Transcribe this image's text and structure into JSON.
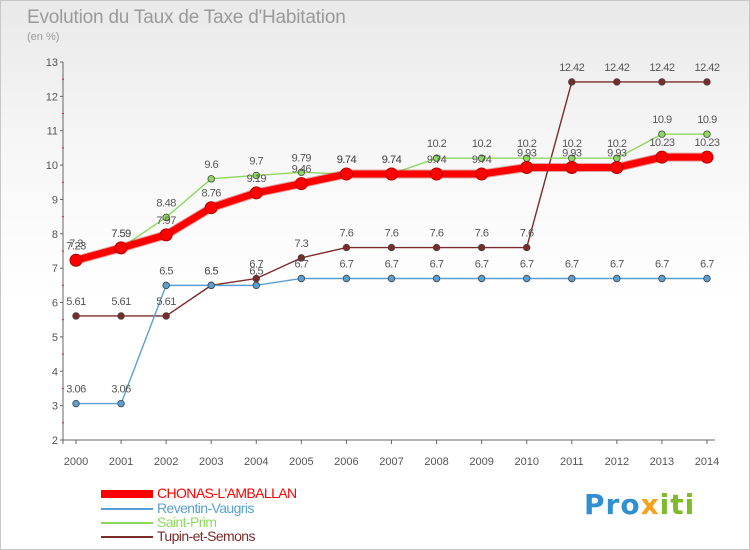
{
  "title": "Evolution du Taux de Taxe d'Habitation",
  "unit": "(en %)",
  "brand": {
    "text": "Proxiti"
  },
  "chart_data": {
    "type": "line",
    "x": [
      2000,
      2001,
      2002,
      2003,
      2004,
      2005,
      2006,
      2007,
      2008,
      2009,
      2010,
      2011,
      2012,
      2013,
      2014
    ],
    "ylim": [
      2,
      13
    ],
    "yticks": [
      2,
      3,
      4,
      5,
      6,
      7,
      8,
      9,
      10,
      11,
      12,
      13
    ],
    "grid": false,
    "legend_position": "bottom-left",
    "series": [
      {
        "name": "CHONAS-L'AMBALLAN",
        "color": "#ff0000",
        "values": [
          7.23,
          7.59,
          7.97,
          8.76,
          9.19,
          9.46,
          9.74,
          9.74,
          9.74,
          9.74,
          9.93,
          9.93,
          9.93,
          10.23,
          10.23
        ],
        "labels": [
          "7.23",
          "7.59",
          "7.97",
          "8.76",
          "9.19",
          "9.46",
          "9.74",
          "9.74",
          "9.74",
          "9.74",
          "9.93",
          "9.93",
          "9.93",
          "10.23",
          "10.23"
        ]
      },
      {
        "name": "Reventin-Vaugris",
        "color": "#5a9fd4",
        "values": [
          3.06,
          3.06,
          6.5,
          6.5,
          6.5,
          6.7,
          6.7,
          6.7,
          6.7,
          6.7,
          6.7,
          6.7,
          6.7,
          6.7,
          6.7
        ],
        "labels": [
          "3.06",
          "3.06",
          "6.5",
          "6.5",
          "6.5",
          "6.7",
          "6.7",
          "6.7",
          "6.7",
          "6.7",
          "6.7",
          "6.7",
          "6.7",
          "6.7",
          "6.7"
        ]
      },
      {
        "name": "Saint-Prim",
        "color": "#8fd860",
        "values": [
          7.3,
          7.59,
          8.48,
          9.6,
          9.7,
          9.79,
          9.74,
          9.74,
          10.2,
          10.2,
          10.2,
          10.2,
          10.2,
          10.9,
          10.9
        ],
        "labels": [
          "7.3",
          "7.59",
          "8.48",
          "9.6",
          "9.7",
          "9.79",
          "9.74",
          "9.74",
          "10.2",
          "10.2",
          "10.2",
          "10.2",
          "10.2",
          "10.9",
          "10.9"
        ]
      },
      {
        "name": "Tupin-et-Semons",
        "color": "#7a2b2b",
        "values": [
          5.61,
          5.61,
          5.61,
          6.5,
          6.7,
          7.3,
          7.6,
          7.6,
          7.6,
          7.6,
          7.6,
          12.42,
          12.42,
          12.42,
          12.42
        ],
        "labels": [
          "5.61",
          "5.61",
          "5.61",
          "6.5",
          "6.7",
          "7.3",
          "7.6",
          "7.6",
          "7.6",
          "7.6",
          "7.6",
          "12.42",
          "12.42",
          "12.42",
          "12.42"
        ]
      }
    ]
  }
}
